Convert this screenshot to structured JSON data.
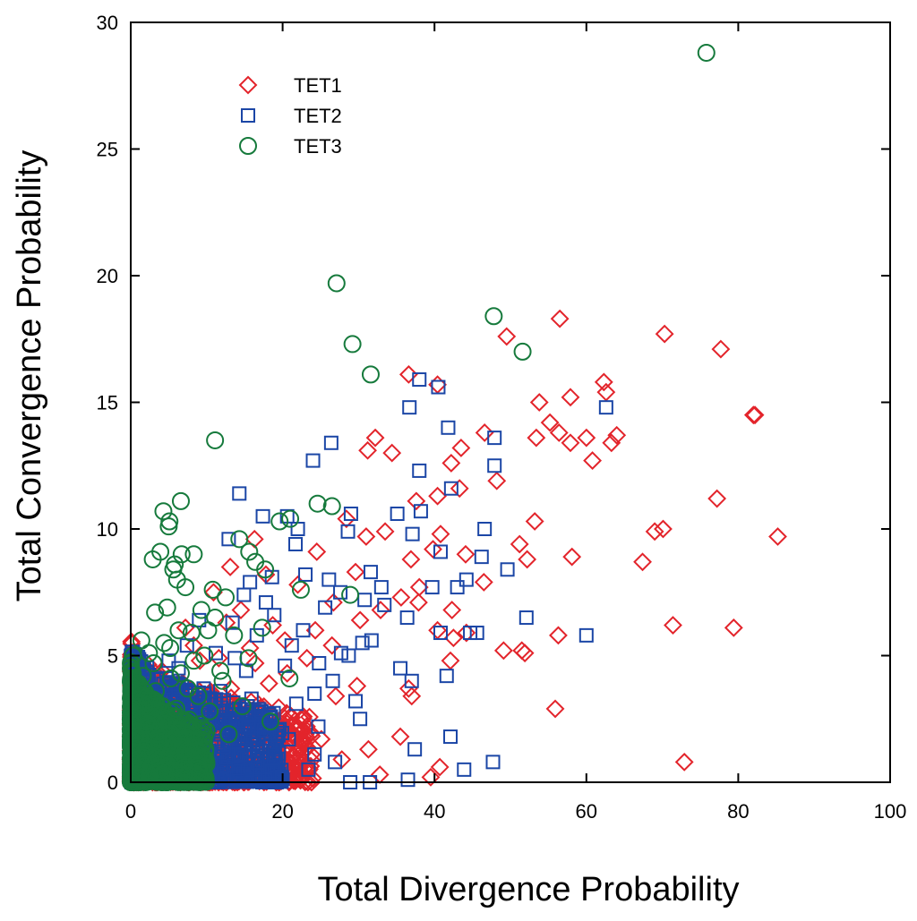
{
  "chart_data": {
    "type": "scatter",
    "title": "",
    "xlabel": "Total Divergence Probability",
    "ylabel": "Total Convergence Probability",
    "xlim": [
      0,
      100
    ],
    "ylim": [
      0,
      30
    ],
    "xticks": [
      0,
      20,
      40,
      60,
      80,
      100
    ],
    "yticks": [
      0,
      5,
      10,
      15,
      20,
      25,
      30
    ],
    "xtick_labels": [
      "0",
      "20",
      "40",
      "60",
      "80",
      "100"
    ],
    "ytick_labels": [
      "0",
      "5",
      "10",
      "15",
      "20",
      "25",
      "30"
    ],
    "grid": false,
    "legend_position": "top-left",
    "series": [
      {
        "name": "TET1",
        "marker": "diamond",
        "color": "#e3242b",
        "points": [
          [
            56.5,
            18.3
          ],
          [
            49.5,
            17.6
          ],
          [
            70.3,
            17.7
          ],
          [
            77.7,
            17.1
          ],
          [
            36.6,
            16.1
          ],
          [
            40.4,
            15.7
          ],
          [
            53.8,
            15.0
          ],
          [
            57.9,
            15.2
          ],
          [
            62.3,
            15.8
          ],
          [
            62.6,
            15.4
          ],
          [
            55.2,
            14.2
          ],
          [
            56.4,
            13.8
          ],
          [
            57.9,
            13.4
          ],
          [
            60.0,
            13.6
          ],
          [
            63.3,
            13.4
          ],
          [
            64.0,
            13.7
          ],
          [
            53.4,
            13.6
          ],
          [
            46.6,
            13.8
          ],
          [
            43.5,
            13.2
          ],
          [
            42.2,
            12.6
          ],
          [
            60.8,
            12.7
          ],
          [
            82.0,
            14.5
          ],
          [
            82.2,
            14.5
          ],
          [
            48.2,
            11.9
          ],
          [
            43.3,
            11.6
          ],
          [
            40.4,
            11.3
          ],
          [
            37.6,
            11.1
          ],
          [
            32.2,
            13.6
          ],
          [
            31.2,
            13.1
          ],
          [
            34.4,
            13.0
          ],
          [
            77.2,
            11.2
          ],
          [
            69.0,
            9.9
          ],
          [
            70.1,
            10.0
          ],
          [
            85.2,
            9.7
          ],
          [
            53.2,
            10.3
          ],
          [
            51.2,
            9.4
          ],
          [
            52.2,
            8.8
          ],
          [
            67.4,
            8.7
          ],
          [
            58.1,
            8.9
          ],
          [
            46.5,
            7.9
          ],
          [
            44.1,
            9.0
          ],
          [
            40.8,
            9.8
          ],
          [
            39.8,
            9.2
          ],
          [
            36.9,
            8.8
          ],
          [
            28.4,
            10.4
          ],
          [
            31.0,
            9.7
          ],
          [
            24.5,
            9.1
          ],
          [
            38.0,
            7.7
          ],
          [
            35.6,
            7.3
          ],
          [
            37.9,
            7.1
          ],
          [
            42.3,
            6.8
          ],
          [
            71.4,
            6.2
          ],
          [
            79.4,
            6.1
          ],
          [
            56.3,
            5.8
          ],
          [
            49.1,
            5.2
          ],
          [
            51.5,
            5.2
          ],
          [
            51.9,
            5.1
          ],
          [
            44.2,
            5.9
          ],
          [
            42.5,
            5.7
          ],
          [
            40.4,
            6.0
          ],
          [
            42.1,
            4.8
          ],
          [
            37.0,
            3.4
          ],
          [
            36.6,
            3.7
          ],
          [
            35.5,
            1.8
          ],
          [
            40.7,
            0.6
          ],
          [
            39.5,
            0.2
          ],
          [
            55.9,
            2.9
          ],
          [
            72.9,
            0.8
          ],
          [
            31.3,
            1.3
          ],
          [
            32.8,
            0.3
          ],
          [
            23.8,
            0.0
          ],
          [
            21.0,
            0.8
          ],
          [
            22.4,
            2.5
          ],
          [
            27.0,
            3.4
          ],
          [
            29.8,
            3.8
          ],
          [
            26.5,
            5.4
          ],
          [
            24.3,
            6.0
          ],
          [
            30.2,
            6.4
          ],
          [
            32.9,
            6.8
          ],
          [
            29.6,
            8.3
          ],
          [
            22.0,
            7.8
          ],
          [
            17.8,
            8.2
          ],
          [
            16.3,
            9.6
          ],
          [
            13.1,
            8.5
          ],
          [
            18.7,
            6.2
          ],
          [
            16.4,
            4.7
          ],
          [
            13.2,
            3.7
          ],
          [
            19.5,
            2.3
          ],
          [
            17.6,
            1.6
          ],
          [
            15.5,
            0.9
          ],
          [
            11.6,
            4.9
          ],
          [
            12.4,
            2.9
          ],
          [
            14.5,
            6.8
          ],
          [
            10.9,
            7.5
          ],
          [
            27.8,
            0.9
          ],
          [
            20.6,
            4.3
          ],
          [
            8.8,
            1.2
          ],
          [
            9.6,
            3.1
          ],
          [
            8.3,
            5.4
          ],
          [
            6.2,
            3.9
          ],
          [
            5.3,
            1.7
          ],
          [
            4.1,
            4.4
          ],
          [
            3.2,
            2.8
          ],
          [
            2.6,
            0.6
          ],
          [
            1.9,
            3.5
          ],
          [
            7.2,
            6.1
          ],
          [
            10.2,
            1.8
          ],
          [
            12.0,
            0.4
          ],
          [
            14.8,
            2.0
          ],
          [
            18.2,
            3.9
          ],
          [
            25.1,
            1.7
          ],
          [
            23.2,
            4.9
          ],
          [
            26.7,
            7.1
          ],
          [
            33.5,
            9.9
          ],
          [
            20.3,
            5.6
          ],
          [
            15.7,
            5.3
          ],
          [
            12.6,
            6.3
          ],
          [
            9.1,
            4.8
          ],
          [
            6.7,
            2.4
          ],
          [
            4.8,
            0.9
          ]
        ]
      },
      {
        "name": "TET2",
        "marker": "square",
        "color": "#1b46a6",
        "points": [
          [
            38.0,
            15.9
          ],
          [
            36.7,
            14.8
          ],
          [
            40.5,
            15.6
          ],
          [
            62.6,
            14.8
          ],
          [
            41.8,
            14.0
          ],
          [
            26.4,
            13.4
          ],
          [
            24.0,
            12.7
          ],
          [
            47.9,
            13.6
          ],
          [
            47.9,
            12.5
          ],
          [
            38.0,
            12.3
          ],
          [
            14.3,
            11.4
          ],
          [
            42.2,
            11.6
          ],
          [
            17.4,
            10.5
          ],
          [
            20.6,
            10.5
          ],
          [
            22.0,
            10.0
          ],
          [
            29.0,
            10.6
          ],
          [
            35.1,
            10.6
          ],
          [
            38.2,
            10.7
          ],
          [
            46.6,
            10.0
          ],
          [
            28.6,
            9.9
          ],
          [
            37.1,
            9.8
          ],
          [
            40.8,
            9.1
          ],
          [
            46.2,
            8.9
          ],
          [
            49.6,
            8.4
          ],
          [
            44.2,
            8.0
          ],
          [
            43.0,
            7.7
          ],
          [
            39.7,
            7.7
          ],
          [
            33.0,
            7.7
          ],
          [
            31.6,
            8.3
          ],
          [
            26.1,
            8.0
          ],
          [
            23.0,
            8.2
          ],
          [
            21.7,
            9.4
          ],
          [
            12.9,
            9.6
          ],
          [
            18.6,
            8.1
          ],
          [
            15.7,
            7.9
          ],
          [
            52.1,
            6.5
          ],
          [
            60.0,
            5.8
          ],
          [
            44.7,
            5.9
          ],
          [
            45.6,
            5.9
          ],
          [
            40.8,
            5.9
          ],
          [
            36.4,
            6.5
          ],
          [
            33.4,
            7.0
          ],
          [
            31.7,
            5.6
          ],
          [
            35.5,
            4.5
          ],
          [
            37.0,
            4.0
          ],
          [
            41.6,
            4.2
          ],
          [
            30.5,
            5.5
          ],
          [
            28.7,
            5.0
          ],
          [
            27.7,
            5.1
          ],
          [
            24.8,
            4.7
          ],
          [
            26.6,
            4.0
          ],
          [
            29.6,
            3.2
          ],
          [
            30.2,
            2.5
          ],
          [
            24.2,
            3.5
          ],
          [
            24.7,
            2.2
          ],
          [
            21.8,
            3.1
          ],
          [
            20.8,
            1.7
          ],
          [
            26.9,
            0.8
          ],
          [
            24.2,
            1.1
          ],
          [
            28.9,
            0.0
          ],
          [
            31.5,
            0.0
          ],
          [
            36.5,
            0.1
          ],
          [
            37.4,
            1.3
          ],
          [
            42.1,
            1.8
          ],
          [
            43.9,
            0.5
          ],
          [
            47.7,
            0.8
          ],
          [
            17.2,
            2.8
          ],
          [
            15.2,
            4.4
          ],
          [
            13.4,
            6.3
          ],
          [
            11.2,
            5.1
          ],
          [
            9.6,
            3.7
          ],
          [
            8.0,
            2.0
          ],
          [
            6.3,
            4.5
          ],
          [
            5.5,
            1.3
          ],
          [
            4.6,
            3.4
          ],
          [
            3.4,
            0.8
          ],
          [
            2.5,
            2.6
          ],
          [
            1.8,
            4.2
          ],
          [
            1.1,
            1.5
          ],
          [
            0.7,
            3.2
          ],
          [
            10.6,
            0.6
          ],
          [
            12.9,
            2.4
          ],
          [
            14.5,
            1.1
          ],
          [
            16.6,
            5.8
          ],
          [
            18.9,
            6.6
          ],
          [
            20.3,
            4.6
          ],
          [
            22.7,
            6.0
          ],
          [
            25.6,
            6.9
          ],
          [
            27.6,
            7.5
          ],
          [
            30.8,
            7.2
          ],
          [
            19.6,
            2.1
          ],
          [
            23.4,
            0.5
          ],
          [
            15.9,
            3.3
          ],
          [
            11.8,
            3.6
          ],
          [
            9.0,
            6.4
          ],
          [
            7.4,
            5.4
          ],
          [
            3.9,
            1.9
          ],
          [
            2.1,
            0.3
          ],
          [
            6.9,
            0.9
          ],
          [
            13.7,
            4.9
          ],
          [
            17.8,
            7.1
          ],
          [
            21.2,
            5.4
          ],
          [
            8.5,
            2.9
          ],
          [
            5.0,
            4.8
          ],
          [
            12.3,
            1.4
          ],
          [
            14.9,
            7.4
          ]
        ]
      },
      {
        "name": "TET3",
        "marker": "circle",
        "color": "#167a3c",
        "points": [
          [
            75.8,
            28.8
          ],
          [
            27.1,
            19.7
          ],
          [
            47.8,
            18.4
          ],
          [
            29.2,
            17.3
          ],
          [
            51.6,
            17.0
          ],
          [
            31.6,
            16.1
          ],
          [
            11.1,
            13.5
          ],
          [
            24.6,
            11.0
          ],
          [
            26.5,
            10.9
          ],
          [
            6.6,
            11.1
          ],
          [
            4.3,
            10.7
          ],
          [
            5.1,
            10.3
          ],
          [
            5.0,
            10.1
          ],
          [
            14.3,
            9.6
          ],
          [
            19.6,
            10.3
          ],
          [
            21.0,
            10.4
          ],
          [
            3.9,
            9.1
          ],
          [
            2.9,
            8.8
          ],
          [
            5.8,
            8.6
          ],
          [
            6.7,
            9.0
          ],
          [
            8.3,
            9.0
          ],
          [
            15.6,
            9.1
          ],
          [
            16.4,
            8.7
          ],
          [
            17.7,
            8.4
          ],
          [
            5.6,
            8.4
          ],
          [
            6.1,
            8.0
          ],
          [
            7.2,
            7.7
          ],
          [
            4.8,
            6.9
          ],
          [
            3.2,
            6.7
          ],
          [
            10.8,
            7.6
          ],
          [
            12.5,
            7.3
          ],
          [
            9.3,
            6.8
          ],
          [
            6.3,
            6.0
          ],
          [
            5.2,
            5.3
          ],
          [
            2.4,
            5.1
          ],
          [
            0.3,
            5.0
          ],
          [
            1.6,
            4.2
          ],
          [
            3.3,
            3.6
          ],
          [
            0.8,
            2.6
          ],
          [
            2.1,
            1.4
          ],
          [
            0.4,
            0.7
          ],
          [
            1.3,
            0.2
          ],
          [
            4.6,
            2.3
          ],
          [
            6.6,
            4.3
          ],
          [
            8.9,
            3.4
          ],
          [
            7.9,
            1.2
          ],
          [
            10.4,
            2.8
          ],
          [
            11.8,
            4.4
          ],
          [
            12.9,
            1.9
          ],
          [
            7.1,
            0.6
          ],
          [
            3.8,
            0.9
          ],
          [
            22.4,
            7.6
          ],
          [
            17.3,
            6.1
          ],
          [
            20.9,
            4.1
          ],
          [
            13.6,
            5.8
          ],
          [
            9.7,
            5.0
          ],
          [
            28.9,
            7.4
          ],
          [
            14.7,
            3.0
          ],
          [
            2.6,
            3.1
          ],
          [
            5.6,
            1.7
          ],
          [
            1.0,
            3.9
          ],
          [
            3.0,
            4.7
          ],
          [
            4.1,
            0.3
          ],
          [
            0.6,
            1.8
          ],
          [
            2.0,
            2.3
          ],
          [
            6.0,
            2.9
          ],
          [
            8.3,
            4.8
          ],
          [
            11.1,
            6.5
          ],
          [
            15.5,
            4.9
          ],
          [
            18.4,
            2.4
          ],
          [
            0.9,
            0.9
          ],
          [
            1.8,
            3.0
          ],
          [
            4.4,
            5.5
          ],
          [
            7.5,
            3.7
          ],
          [
            9.4,
            1.8
          ],
          [
            10.2,
            6.0
          ],
          [
            2.7,
            0.4
          ],
          [
            0.2,
            2.9
          ],
          [
            3.6,
            2.0
          ],
          [
            5.3,
            4.1
          ],
          [
            6.8,
            1.5
          ],
          [
            8.0,
            5.9
          ],
          [
            12.1,
            4.0
          ],
          [
            1.4,
            5.6
          ]
        ]
      }
    ],
    "core_clusters": [
      {
        "series": "TET1",
        "x_range": [
          0,
          24
        ],
        "y_range": [
          0,
          6
        ]
      },
      {
        "series": "TET2",
        "x_range": [
          0,
          20
        ],
        "y_range": [
          0,
          6
        ]
      },
      {
        "series": "TET3",
        "x_range": [
          0,
          10
        ],
        "y_range": [
          0,
          5
        ]
      }
    ]
  }
}
